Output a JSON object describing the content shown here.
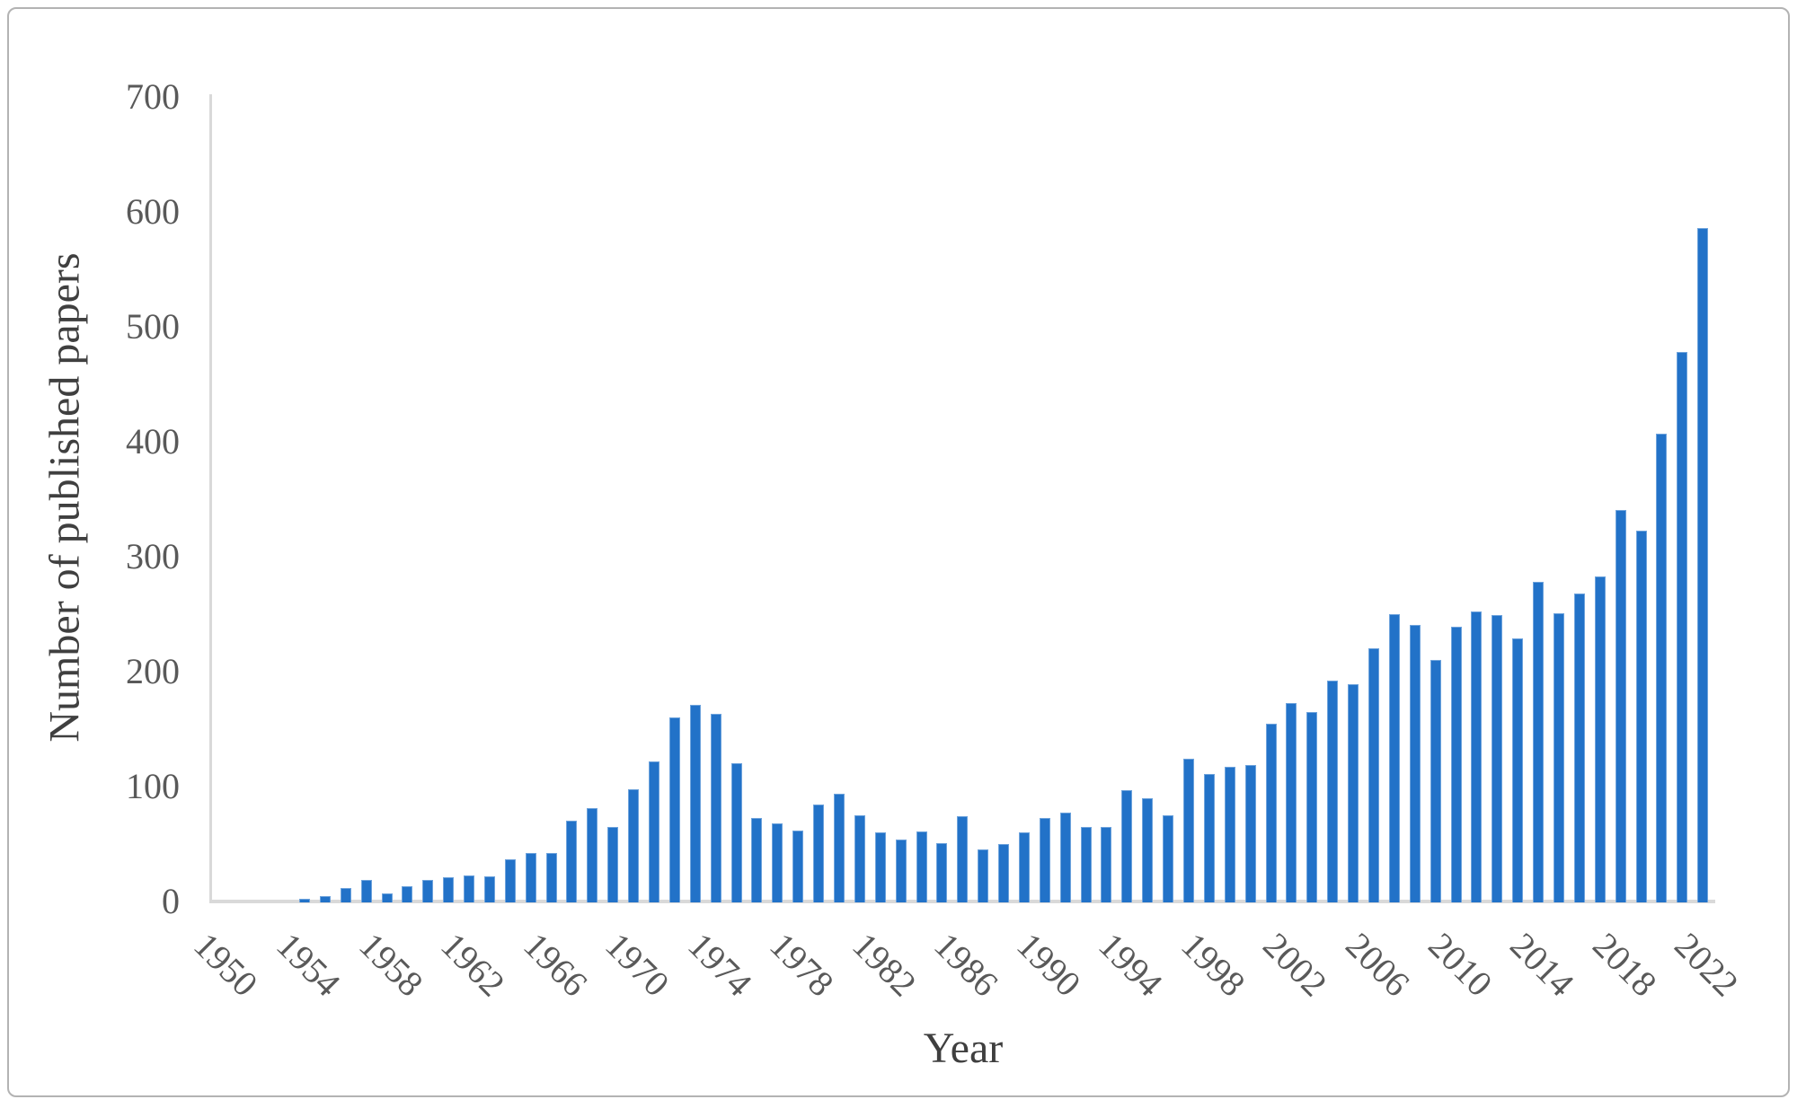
{
  "figure": {
    "background": "#ffffff",
    "border_color": "#b3b3b3"
  },
  "chart_data": {
    "type": "bar",
    "title": "",
    "xlabel": "Year",
    "ylabel": "Number of published papers",
    "x": [
      1950,
      1951,
      1952,
      1953,
      1954,
      1955,
      1956,
      1957,
      1958,
      1959,
      1960,
      1961,
      1962,
      1963,
      1964,
      1965,
      1966,
      1967,
      1968,
      1969,
      1970,
      1971,
      1972,
      1973,
      1974,
      1975,
      1976,
      1977,
      1978,
      1979,
      1980,
      1981,
      1982,
      1983,
      1984,
      1985,
      1986,
      1987,
      1988,
      1989,
      1990,
      1991,
      1992,
      1993,
      1994,
      1995,
      1996,
      1997,
      1998,
      1999,
      2000,
      2001,
      2002,
      2003,
      2004,
      2005,
      2006,
      2007,
      2008,
      2009,
      2010,
      2011,
      2012,
      2013,
      2014,
      2015,
      2016,
      2017,
      2018,
      2019,
      2020,
      2021,
      2022
    ],
    "values": [
      0,
      0,
      0,
      0,
      2,
      5,
      12,
      19,
      7,
      13,
      19,
      21,
      23,
      22,
      37,
      42,
      42,
      70,
      81,
      65,
      98,
      122,
      160,
      171,
      163,
      120,
      73,
      68,
      62,
      84,
      94,
      75,
      60,
      54,
      61,
      51,
      74,
      45,
      50,
      60,
      73,
      77,
      65,
      65,
      97,
      90,
      75,
      124,
      111,
      117,
      119,
      155,
      173,
      165,
      192,
      189,
      220,
      250,
      241,
      210,
      239,
      252,
      249,
      229,
      278,
      251,
      268,
      283,
      341,
      323,
      407,
      478,
      586
    ],
    "ylim": [
      0,
      700
    ],
    "y_ticks": [
      0,
      100,
      200,
      300,
      400,
      500,
      600,
      700
    ],
    "x_tick_labels": [
      "1950",
      "1954",
      "1958",
      "1962",
      "1966",
      "1970",
      "1974",
      "1978",
      "1982",
      "1986",
      "1990",
      "1994",
      "1998",
      "2002",
      "2006",
      "2010",
      "2014",
      "2018",
      "2022"
    ],
    "x_tick_step": 4,
    "bar_color": "#2272c8",
    "axis_line_color": "#d9d9d9",
    "tick_label_color": "#595959",
    "axis_title_color": "#3f3f3f",
    "grid": false,
    "legend_position": "none"
  }
}
